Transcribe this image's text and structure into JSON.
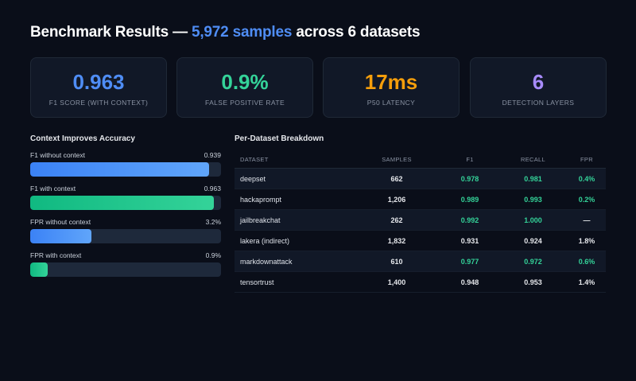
{
  "header": {
    "title_prefix": "Benchmark Results — ",
    "title_highlight": "5,972 samples",
    "title_suffix": " across 6 datasets"
  },
  "metrics": [
    {
      "value": "0.963",
      "label": "F1 SCORE (WITH CONTEXT)",
      "color": "#4f8df5"
    },
    {
      "value": "0.9%",
      "label": "FALSE POSITIVE RATE",
      "color": "#34d399"
    },
    {
      "value": "17ms",
      "label": "P50 LATENCY",
      "color": "#f59e0b"
    },
    {
      "value": "6",
      "label": "DETECTION LAYERS",
      "color": "#a78bfa"
    }
  ],
  "context_section": {
    "title": "Context Improves Accuracy",
    "bars": [
      {
        "label": "F1 without context",
        "value_text": "0.939",
        "level": 0.939,
        "color": "blue"
      },
      {
        "label": "F1 with context",
        "value_text": "0.963",
        "level": 0.963,
        "color": "green"
      },
      {
        "label": "FPR without context",
        "value_text": "3.2%",
        "level": 0.32,
        "color": "blue"
      },
      {
        "label": "FPR with context",
        "value_text": "0.9%",
        "level": 0.09,
        "color": "green"
      }
    ]
  },
  "breakdown": {
    "title": "Per-Dataset Breakdown",
    "columns": [
      "DATASET",
      "SAMPLES",
      "F1",
      "RECALL",
      "FPR"
    ],
    "rows": [
      {
        "dataset": "deepset",
        "samples": "662",
        "f1": "0.978",
        "recall": "0.981",
        "fpr": "0.4%",
        "highlight": [
          true,
          true,
          true
        ]
      },
      {
        "dataset": "hackaprompt",
        "samples": "1,206",
        "f1": "0.989",
        "recall": "0.993",
        "fpr": "0.2%",
        "highlight": [
          true,
          true,
          true
        ]
      },
      {
        "dataset": "jailbreakchat",
        "samples": "262",
        "f1": "0.992",
        "recall": "1.000",
        "fpr": "—",
        "highlight": [
          true,
          true,
          false
        ]
      },
      {
        "dataset": "lakera (indirect)",
        "samples": "1,832",
        "f1": "0.931",
        "recall": "0.924",
        "fpr": "1.8%",
        "highlight": [
          false,
          false,
          false
        ]
      },
      {
        "dataset": "markdownattack",
        "samples": "610",
        "f1": "0.977",
        "recall": "0.972",
        "fpr": "0.6%",
        "highlight": [
          true,
          true,
          true
        ]
      },
      {
        "dataset": "tensortrust",
        "samples": "1,400",
        "f1": "0.948",
        "recall": "0.953",
        "fpr": "1.4%",
        "highlight": [
          false,
          false,
          false
        ]
      }
    ]
  }
}
